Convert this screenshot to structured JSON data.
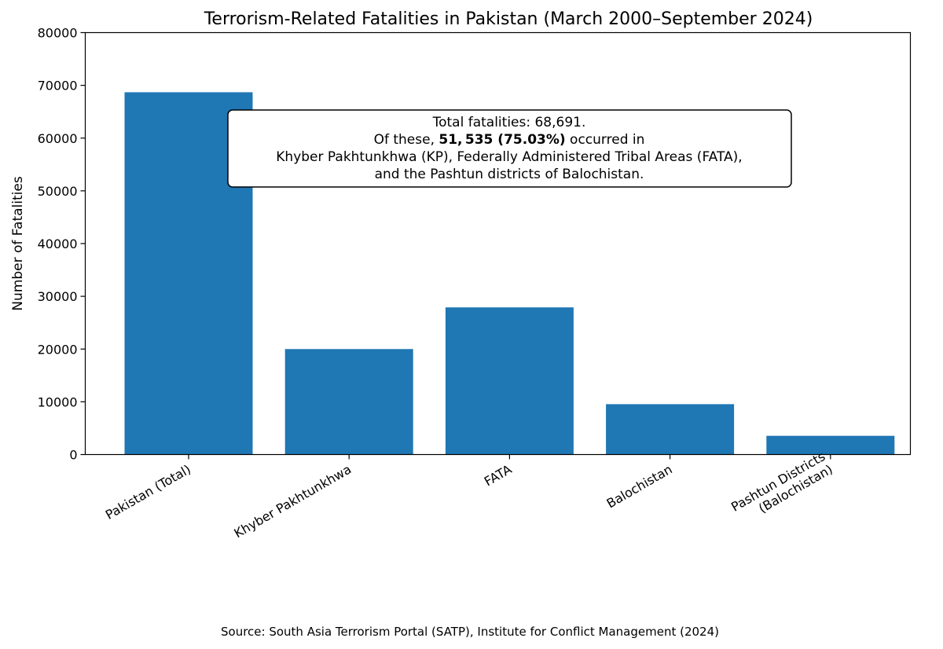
{
  "chart_data": {
    "type": "bar",
    "title": "Terrorism-Related Fatalities in Pakistan (March 2000–September 2024)",
    "xlabel": "",
    "ylabel": "Number of Fatalities",
    "categories": [
      "Pakistan (Total)",
      "Khyber Pakhtunkhwa",
      "FATA",
      "Balochistan",
      "Pashtun Districts\n(Balochistan)"
    ],
    "values": [
      68691,
      20000,
      27900,
      9550,
      3550
    ],
    "ylim": [
      0,
      80000
    ],
    "yticks": [
      "0",
      "10000",
      "20000",
      "30000",
      "40000",
      "50000",
      "60000",
      "70000",
      "80000"
    ],
    "bar_color": "#1f77b4",
    "grid": false,
    "annotation": {
      "line1": "Total fatalities: 68,691.",
      "line2_pre": "Of these, ",
      "line2_bold": "51, 535 (75.03%)",
      "line2_post": " occurred in",
      "line3": "Khyber Pakhtunkhwa (KP), Federally Administered Tribal Areas (FATA),",
      "line4": "and the Pashtun districts of Balochistan."
    },
    "source": "Source: South Asia Terrorism Portal (SATP), Institute for Conflict Management (2024)"
  }
}
